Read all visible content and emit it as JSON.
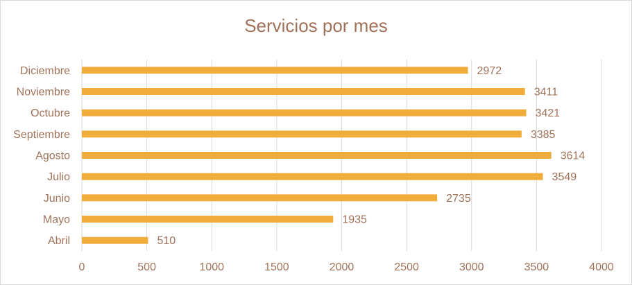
{
  "chart_data": {
    "type": "bar",
    "orientation": "horizontal",
    "title": "Servicios por mes",
    "xlabel": "",
    "ylabel": "",
    "categories": [
      "Abril",
      "Mayo",
      "Junio",
      "Julio",
      "Agosto",
      "Septiembre",
      "Octubre",
      "Noviembre",
      "Diciembre"
    ],
    "values": [
      510,
      1935,
      2735,
      3549,
      3614,
      3385,
      3421,
      3411,
      2972
    ],
    "xlim": [
      0,
      4000
    ],
    "xticks": [
      0,
      500,
      1000,
      1500,
      2000,
      2500,
      3000,
      3500,
      4000
    ],
    "grid": "vertical",
    "legend": "none",
    "data_labels": true,
    "bar_color": "#f0ad3c",
    "text_color": "#a0725a",
    "grid_color": "#d9d9d9"
  }
}
